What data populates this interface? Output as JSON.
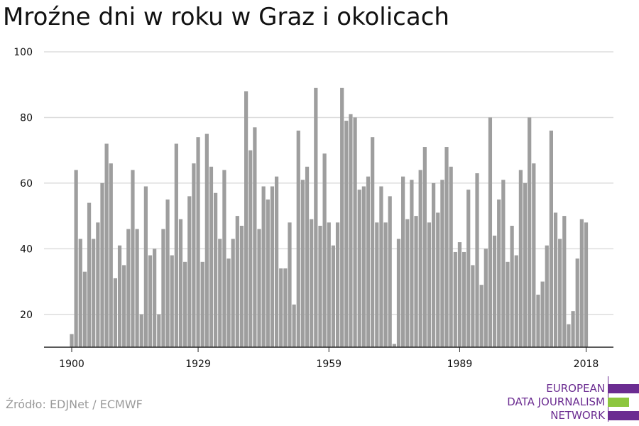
{
  "title": "Mroźne dni w roku w Graz i okolicach",
  "source": "Źródło: EDJNet / ECMWF",
  "logo": {
    "lines": [
      "EUROPEAN",
      "DATA JOURNALISM",
      "NETWORK"
    ],
    "colors": {
      "purple": "#6b2c91",
      "green": "#8cc63f"
    }
  },
  "colors": {
    "bar": "#9e9e9e",
    "grid": "#dddddd",
    "axis": "#222222",
    "text": "#111111"
  },
  "chart_data": {
    "type": "bar",
    "title": "Mroźne dni w roku w Graz i okolicach",
    "xlabel": "",
    "ylabel": "",
    "ylim": [
      10,
      100
    ],
    "yticks": [
      20,
      40,
      60,
      80,
      100
    ],
    "xticks": [
      1900,
      1929,
      1959,
      1989,
      2018
    ],
    "grid": true,
    "x": [
      1900,
      1901,
      1902,
      1903,
      1904,
      1905,
      1906,
      1907,
      1908,
      1909,
      1910,
      1911,
      1912,
      1913,
      1914,
      1915,
      1916,
      1917,
      1918,
      1919,
      1920,
      1921,
      1922,
      1923,
      1924,
      1925,
      1926,
      1927,
      1928,
      1929,
      1930,
      1931,
      1932,
      1933,
      1934,
      1935,
      1936,
      1937,
      1938,
      1939,
      1940,
      1941,
      1942,
      1943,
      1944,
      1945,
      1946,
      1947,
      1948,
      1949,
      1950,
      1951,
      1952,
      1953,
      1954,
      1955,
      1956,
      1957,
      1958,
      1959,
      1960,
      1961,
      1962,
      1963,
      1964,
      1965,
      1966,
      1967,
      1968,
      1969,
      1970,
      1971,
      1972,
      1973,
      1974,
      1975,
      1976,
      1977,
      1978,
      1979,
      1980,
      1981,
      1982,
      1983,
      1984,
      1985,
      1986,
      1987,
      1988,
      1989,
      1990,
      1991,
      1992,
      1993,
      1994,
      1995,
      1996,
      1997,
      1998,
      1999,
      2000,
      2001,
      2002,
      2003,
      2004,
      2005,
      2006,
      2007,
      2008,
      2009,
      2010,
      2011,
      2012,
      2013,
      2014,
      2015,
      2016,
      2017,
      2018
    ],
    "values": [
      14,
      64,
      43,
      33,
      54,
      43,
      48,
      60,
      72,
      66,
      31,
      41,
      35,
      46,
      64,
      46,
      20,
      59,
      38,
      40,
      20,
      46,
      55,
      38,
      72,
      49,
      36,
      56,
      66,
      74,
      36,
      75,
      65,
      57,
      43,
      64,
      37,
      43,
      50,
      47,
      88,
      70,
      77,
      46,
      59,
      55,
      59,
      62,
      34,
      34,
      48,
      23,
      76,
      61,
      65,
      49,
      89,
      47,
      69,
      48,
      41,
      48,
      89,
      79,
      81,
      80,
      58,
      59,
      62,
      74,
      48,
      59,
      48,
      56,
      11,
      43,
      62,
      49,
      61,
      50,
      64,
      71,
      48,
      60,
      51,
      61,
      71,
      65,
      39,
      42,
      39,
      58,
      35,
      63,
      29,
      40,
      80,
      44,
      55,
      61,
      36,
      47,
      38,
      64,
      60,
      80,
      66,
      26,
      30,
      41,
      76,
      51,
      43,
      50,
      17,
      21,
      37,
      49,
      48
    ]
  }
}
